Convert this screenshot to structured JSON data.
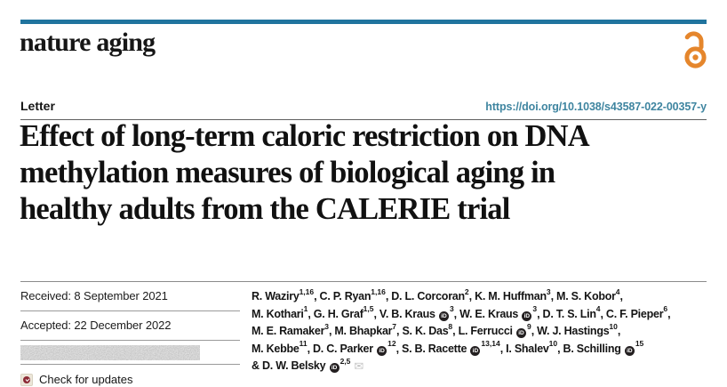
{
  "journal": {
    "wordmark": "nature aging"
  },
  "header": {
    "article_type": "Letter",
    "doi": "https://doi.org/10.1038/s43587-022-00357-y"
  },
  "title": {
    "lines": [
      "Effect of long-term caloric restriction on DNA",
      "methylation measures of biological aging in",
      "healthy adults from the CALERIE trial"
    ]
  },
  "dates": {
    "received": "Received: 8 September 2021",
    "accepted": "Accepted: 22 December 2022"
  },
  "check_for_updates": {
    "label": "Check for updates"
  },
  "authors": {
    "orcid_label": "iD",
    "envelope_glyph": "✉",
    "lines": [
      [
        {
          "t": "R. Waziry"
        },
        {
          "s": "1,16"
        },
        {
          "t": ", C. P. Ryan"
        },
        {
          "s": "1,16"
        },
        {
          "t": ", D. L. Corcoran"
        },
        {
          "s": "2"
        },
        {
          "t": ", K. M. Huffman"
        },
        {
          "s": "3"
        },
        {
          "t": ", M. S. Kobor"
        },
        {
          "s": "4"
        },
        {
          "t": ","
        }
      ],
      [
        {
          "t": "M. Kothari"
        },
        {
          "s": "1"
        },
        {
          "t": ", G. H. Graf"
        },
        {
          "s": "1,5"
        },
        {
          "t": ", V. B. Kraus "
        },
        {
          "i": "orcid"
        },
        {
          "s": "3"
        },
        {
          "t": ", W. E. Kraus "
        },
        {
          "i": "orcid"
        },
        {
          "s": "3"
        },
        {
          "t": ", D. T. S. Lin"
        },
        {
          "s": "4"
        },
        {
          "t": ", C. F. Pieper"
        },
        {
          "s": "6"
        },
        {
          "t": ","
        }
      ],
      [
        {
          "t": "M. E. Ramaker"
        },
        {
          "s": "3"
        },
        {
          "t": ", M. Bhapkar"
        },
        {
          "s": "7"
        },
        {
          "t": ", S. K. Das"
        },
        {
          "s": "8"
        },
        {
          "t": ", L. Ferrucci "
        },
        {
          "i": "orcid"
        },
        {
          "s": "9"
        },
        {
          "t": ", W. J. Hastings"
        },
        {
          "s": "10"
        },
        {
          "t": ","
        }
      ],
      [
        {
          "t": "M. Kebbe"
        },
        {
          "s": "11"
        },
        {
          "t": ", D. C. Parker "
        },
        {
          "i": "orcid"
        },
        {
          "s": "12"
        },
        {
          "t": ", S. B. Racette "
        },
        {
          "i": "orcid"
        },
        {
          "s": "13,14"
        },
        {
          "t": ", I. Shalev"
        },
        {
          "s": "10"
        },
        {
          "t": ", B. Schilling "
        },
        {
          "i": "orcid"
        },
        {
          "s": "15"
        }
      ],
      [
        {
          "t": "& D. W. Belsky "
        },
        {
          "i": "orcid"
        },
        {
          "s": "2,5"
        },
        {
          "i": "envelope"
        }
      ]
    ]
  },
  "icons": {
    "open_access": "open-access-padlock",
    "orcid": "orcid-id-badge",
    "envelope": "corresponding-author-email",
    "crossmark": "crossmark-check-for-updates"
  },
  "colors": {
    "brand_bar": "#20749e",
    "doi_link": "#3f85a0",
    "open_access_orange": "#e5862c",
    "crossmark_red": "#8c2a35",
    "text": "#141414"
  }
}
